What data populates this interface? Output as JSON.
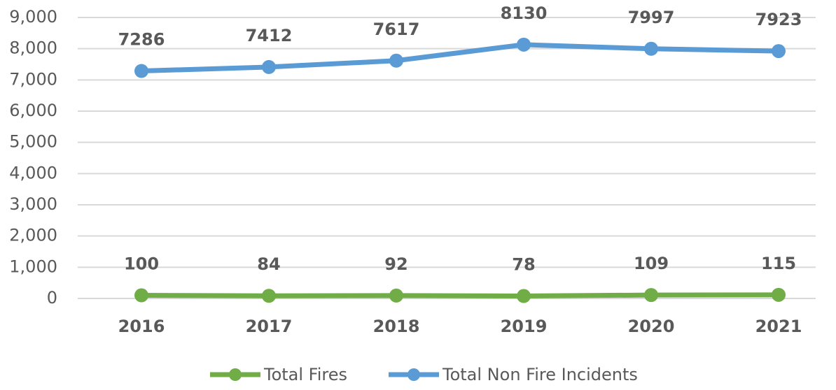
{
  "chart_data": {
    "type": "line",
    "categories": [
      "2016",
      "2017",
      "2018",
      "2019",
      "2020",
      "2021"
    ],
    "series": [
      {
        "name": "Total Fires",
        "color": "#70ad47",
        "values": [
          100,
          84,
          92,
          78,
          109,
          115
        ]
      },
      {
        "name": "Total Non Fire Incidents",
        "color": "#5b9bd5",
        "values": [
          7286,
          7412,
          7617,
          8130,
          7997,
          7923
        ]
      }
    ],
    "ylim": [
      0,
      9000
    ],
    "yticks": [
      0,
      {
        "value": 1000,
        "label": "1,000"
      },
      {
        "value": 2000,
        "label": "2,000"
      },
      {
        "value": 3000,
        "label": "3,000"
      },
      {
        "value": 4000,
        "label": "4,000"
      },
      {
        "value": 5000,
        "label": "5,000"
      },
      {
        "value": 6000,
        "label": "6,000"
      },
      {
        "value": 7000,
        "label": "7,000"
      },
      {
        "value": 8000,
        "label": "8,000"
      },
      {
        "value": 9000,
        "label": "9,000"
      }
    ],
    "grid": true,
    "legend": "bottom"
  }
}
